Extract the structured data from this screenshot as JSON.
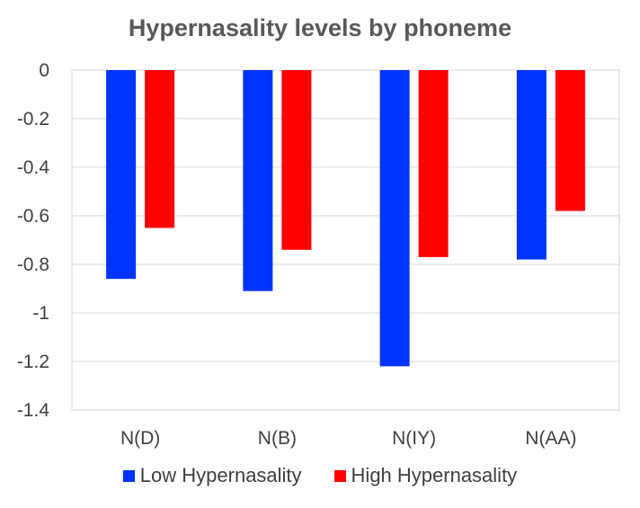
{
  "chart_data": {
    "type": "bar",
    "title": "Hypernasality levels by phoneme",
    "categories": [
      "N(D)",
      "N(B)",
      "N(IY)",
      "N(AA)"
    ],
    "series": [
      {
        "name": "Low Hypernasality",
        "color": "#0033ff",
        "values": [
          -0.86,
          -0.91,
          -1.22,
          -0.78
        ]
      },
      {
        "name": "High Hypernasality",
        "color": "#ff0000",
        "values": [
          -0.65,
          -0.74,
          -0.77,
          -0.58
        ]
      }
    ],
    "ylim": [
      -1.4,
      0
    ],
    "yticks": [
      "0",
      "-0.2",
      "-0.4",
      "-0.6",
      "-0.8",
      "-1",
      "-1.2",
      "-1.4"
    ],
    "grid": true,
    "legend_position": "bottom"
  }
}
